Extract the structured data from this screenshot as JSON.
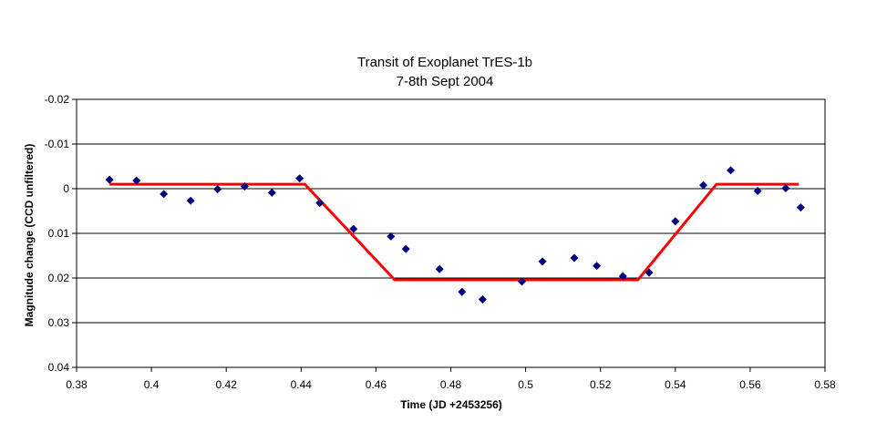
{
  "chart_data": {
    "type": "scatter",
    "title": "Transit of Exoplanet TrES-1b",
    "subtitle": "7-8th Sept 2004",
    "xlabel": "Time (JD +2453256)",
    "ylabel": "Magnitude change (CCD unfiltered)",
    "xlim": [
      0.38,
      0.58
    ],
    "ylim": [
      -0.02,
      0.04
    ],
    "y_inverted": true,
    "grid": "horizontal",
    "x_ticks": [
      "0.38",
      "0.4",
      "0.42",
      "0.44",
      "0.46",
      "0.48",
      "0.5",
      "0.52",
      "0.54",
      "0.56",
      "0.58"
    ],
    "y_ticks": [
      "-0.02",
      "-0.01",
      "0",
      "0.01",
      "0.02",
      "0.03",
      "0.04"
    ],
    "series": [
      {
        "type": "scatter",
        "color": "#000080",
        "marker": "diamond",
        "points": [
          [
            0.3888,
            -0.002
          ],
          [
            0.396,
            -0.0018
          ],
          [
            0.4033,
            0.0012
          ],
          [
            0.4105,
            0.0027
          ],
          [
            0.4177,
            0.0001
          ],
          [
            0.4249,
            -0.0005
          ],
          [
            0.4322,
            0.0009
          ],
          [
            0.4396,
            -0.0023
          ],
          [
            0.445,
            0.0032
          ],
          [
            0.454,
            0.009
          ],
          [
            0.464,
            0.0107
          ],
          [
            0.468,
            0.0135
          ],
          [
            0.477,
            0.018
          ],
          [
            0.483,
            0.0231
          ],
          [
            0.4885,
            0.0248
          ],
          [
            0.499,
            0.0208
          ],
          [
            0.5045,
            0.0163
          ],
          [
            0.513,
            0.0155
          ],
          [
            0.519,
            0.0173
          ],
          [
            0.526,
            0.0196
          ],
          [
            0.533,
            0.0188
          ],
          [
            0.54,
            0.0073
          ],
          [
            0.5475,
            -0.0008
          ],
          [
            0.5548,
            -0.0041
          ],
          [
            0.562,
            0.0005
          ],
          [
            0.5695,
            -0.0001
          ],
          [
            0.5735,
            0.0042
          ]
        ]
      },
      {
        "type": "line",
        "color": "#ff0000",
        "points": [
          [
            0.3888,
            -0.001
          ],
          [
            0.441,
            -0.001
          ],
          [
            0.465,
            0.0204
          ],
          [
            0.53,
            0.0204
          ],
          [
            0.551,
            -0.001
          ],
          [
            0.573,
            -0.001
          ]
        ]
      }
    ]
  }
}
